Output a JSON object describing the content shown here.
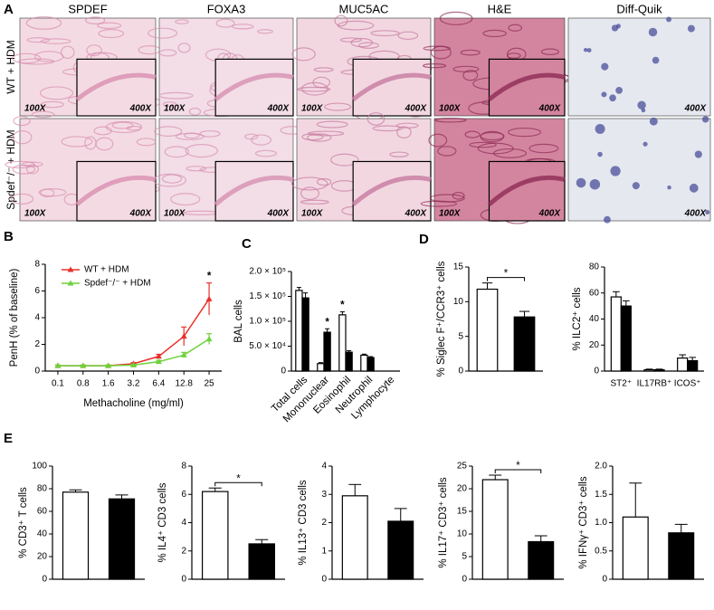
{
  "panel_a": {
    "panel": "A",
    "columns": [
      "SPDEF",
      "FOXA3",
      "MUC5AC",
      "H&E",
      "Diff-Quik"
    ],
    "rows": [
      "WT + HDM",
      "Spdef⁻/⁻ + HDM"
    ],
    "low_mag": "100X",
    "high_mag": "400X"
  },
  "chart_data": [
    {
      "type": "line",
      "panel": "B",
      "ylabel": "PenH (% of baseline)",
      "xlabel": "Methacholine (mg/ml)",
      "categories": [
        "0.1",
        "0.8",
        "1.6",
        "3.2",
        "6.4",
        "12.8",
        "25"
      ],
      "series": [
        {
          "name": "WT + HDM",
          "color": "#e8312a",
          "values": [
            0.4,
            0.4,
            0.4,
            0.55,
            1.1,
            2.6,
            5.4
          ],
          "errors": [
            0.05,
            0.05,
            0.05,
            0.08,
            0.15,
            0.7,
            1.2
          ]
        },
        {
          "name": "Spdef⁻/⁻ + HDM",
          "color": "#6fd13a",
          "values": [
            0.4,
            0.4,
            0.4,
            0.45,
            0.7,
            1.2,
            2.4
          ],
          "errors": [
            0.05,
            0.05,
            0.05,
            0.05,
            0.1,
            0.2,
            0.4
          ]
        }
      ],
      "annotations": [
        {
          "text": "*",
          "category": "25"
        }
      ],
      "ylim": [
        0,
        8
      ],
      "yticks": [
        0,
        2,
        4,
        6,
        8
      ]
    },
    {
      "type": "bar",
      "panel": "C",
      "ylabel": "BAL cells",
      "categories": [
        "Total cells",
        "Mononuclear",
        "Eosinophil",
        "Neutrophil",
        "Lymphocyte"
      ],
      "series": [
        {
          "color": "#ffffff",
          "values": [
            162000,
            15000,
            113000,
            32000,
            0
          ],
          "errors": [
            6000,
            2000,
            6000,
            2000,
            0
          ]
        },
        {
          "color": "#000000",
          "values": [
            147000,
            78000,
            38000,
            27000,
            0
          ],
          "errors": [
            10000,
            7000,
            3000,
            2000,
            0
          ]
        }
      ],
      "annotations": [
        {
          "text": "*",
          "category": "Mononuclear"
        },
        {
          "text": "*",
          "category": "Eosinophil"
        }
      ],
      "ylim": [
        0,
        200000
      ],
      "yticks": [
        0,
        {
          "value": 50000,
          "label": "5.0 × 10⁴"
        },
        {
          "value": 100000,
          "label": "1.0 × 10⁵"
        },
        {
          "value": 150000,
          "label": "1.5 × 10⁵"
        },
        {
          "value": 200000,
          "label": "2.0 × 10⁵"
        }
      ]
    },
    {
      "type": "bar",
      "panel": "D",
      "ylabel": "% Siglec F⁺/CCR3⁺ cells",
      "colors": [
        "#ffffff",
        "#000000"
      ],
      "values": [
        11.8,
        7.8
      ],
      "errors": [
        0.9,
        0.8
      ],
      "significance": "*",
      "ylim": [
        0,
        15
      ],
      "yticks": [
        0,
        5,
        10,
        15
      ]
    },
    {
      "type": "bar",
      "ylabel": "% ILC2⁺ cells",
      "categories": [
        "ST2⁺",
        "IL17RB⁺",
        "ICOS⁺"
      ],
      "series": [
        {
          "color": "#ffffff",
          "values": [
            57,
            1,
            10
          ],
          "errors": [
            4,
            0.5,
            2.5
          ]
        },
        {
          "color": "#000000",
          "values": [
            50,
            1,
            8
          ],
          "errors": [
            4,
            0.5,
            2.5
          ]
        }
      ],
      "ylim": [
        0,
        80
      ],
      "yticks": [
        0,
        20,
        40,
        60,
        80
      ]
    },
    {
      "type": "bar",
      "panel": "E",
      "ylabel": "% CD3⁺ T cells",
      "colors": [
        "#ffffff",
        "#000000"
      ],
      "values": [
        77,
        71
      ],
      "errors": [
        2,
        3.5
      ],
      "ylim": [
        0,
        100
      ],
      "yticks": [
        0,
        20,
        40,
        60,
        80,
        100
      ]
    },
    {
      "type": "bar",
      "ylabel": "% IL4⁺ CD3 cells",
      "colors": [
        "#ffffff",
        "#000000"
      ],
      "values": [
        6.2,
        2.5
      ],
      "errors": [
        0.25,
        0.3
      ],
      "significance": "*",
      "ylim": [
        0,
        8
      ],
      "yticks": [
        0,
        2,
        4,
        6,
        8
      ]
    },
    {
      "type": "bar",
      "ylabel": "% IL13⁺ CD3 cells",
      "colors": [
        "#ffffff",
        "#000000"
      ],
      "values": [
        2.95,
        2.05
      ],
      "errors": [
        0.4,
        0.45
      ],
      "ylim": [
        0,
        4
      ],
      "yticks": [
        0,
        1,
        2,
        3,
        4
      ]
    },
    {
      "type": "bar",
      "ylabel": "% IL17⁺ CD3⁺ cells",
      "colors": [
        "#ffffff",
        "#000000"
      ],
      "values": [
        22,
        8.3
      ],
      "errors": [
        1,
        1.3
      ],
      "significance": "*",
      "ylim": [
        0,
        25
      ],
      "yticks": [
        0,
        5,
        10,
        15,
        20,
        25
      ]
    },
    {
      "type": "bar",
      "ylabel": "% IFNγ⁺ CD3⁺ cells",
      "colors": [
        "#ffffff",
        "#000000"
      ],
      "values": [
        1.1,
        0.82
      ],
      "errors": [
        0.6,
        0.15
      ],
      "ylim": [
        0,
        2
      ],
      "yticks": [
        0,
        0.5,
        {
          "value": 1,
          "label": "1.0"
        },
        1.5,
        {
          "value": 2,
          "label": "2.0"
        }
      ]
    }
  ]
}
